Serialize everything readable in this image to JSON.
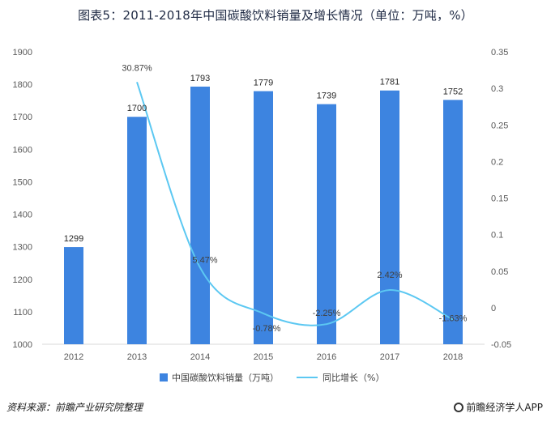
{
  "title": "图表5：2011-2018年中国碳酸饮料销量及增长情况（单位：万吨，%）",
  "footer": {
    "source": "资料来源：前瞻产业研究院整理",
    "brand": "前瞻经济学人APP"
  },
  "colors": {
    "bar": "#3d84e0",
    "line": "#5cc8f2",
    "axis_text": "#595959"
  },
  "chart_data": {
    "type": "bar",
    "categories": [
      "2012",
      "2013",
      "2014",
      "2015",
      "2016",
      "2017",
      "2018"
    ],
    "series": [
      {
        "name": "中国碳酸饮料销量（万吨）",
        "type": "bar",
        "axis": "left",
        "values": [
          1299,
          1700,
          1793,
          1779,
          1739,
          1781,
          1752
        ],
        "labels": [
          "1299",
          "1700",
          "1793",
          "1779",
          "1739",
          "1781",
          "1752"
        ]
      },
      {
        "name": "同比增长（%）",
        "type": "line",
        "axis": "right",
        "values": [
          null,
          0.3087,
          0.0547,
          -0.0078,
          -0.0225,
          0.0242,
          -0.0163
        ],
        "labels": [
          "",
          "30.87%",
          "5.47%",
          "-0.78%",
          "-2.25%",
          "2.42%",
          "-1.63%"
        ]
      }
    ],
    "y_left": {
      "lim": [
        1000,
        1900
      ],
      "ticks": [
        "1000",
        "1100",
        "1200",
        "1300",
        "1400",
        "1500",
        "1600",
        "1700",
        "1800",
        "1900"
      ]
    },
    "y_right": {
      "lim": [
        -0.05,
        0.35
      ],
      "ticks": [
        "-0.05",
        "0",
        "0.05",
        "0.1",
        "0.15",
        "0.2",
        "0.25",
        "0.3",
        "0.35"
      ]
    },
    "grid": false,
    "legend": "bottom"
  }
}
